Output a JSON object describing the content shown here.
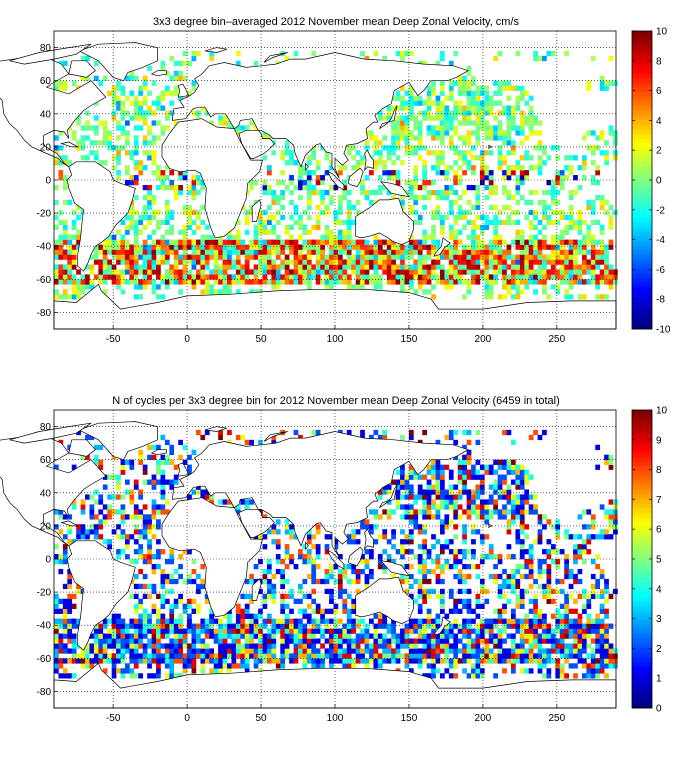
{
  "chart_data": [
    {
      "type": "heatmap",
      "title": "3x3 degree bin–averaged 2012 November mean Deep Zonal Velocity, cm/s",
      "xlabel": "",
      "ylabel": "",
      "xlim": [
        -90,
        290
      ],
      "ylim": [
        -90,
        90
      ],
      "xticks": [
        -50,
        0,
        50,
        100,
        150,
        200,
        250
      ],
      "yticks": [
        -80,
        -60,
        -40,
        -20,
        0,
        20,
        40,
        60,
        80
      ],
      "grid": true,
      "bin_size_deg": 3,
      "colorbar": {
        "min": -10,
        "max": 10,
        "ticks": [
          -10,
          -8,
          -6,
          -4,
          -2,
          0,
          2,
          4,
          6,
          8,
          10
        ],
        "colormap": "jet"
      },
      "seed": 7
    },
    {
      "type": "heatmap",
      "title": "N of cycles per 3x3 degree bin for 2012 November mean Deep Zonal Velocity (6459 in total)",
      "xlabel": "",
      "ylabel": "",
      "xlim": [
        -90,
        290
      ],
      "ylim": [
        -90,
        90
      ],
      "xticks": [
        -50,
        0,
        50,
        100,
        150,
        200,
        250
      ],
      "yticks": [
        -80,
        -60,
        -40,
        -20,
        0,
        20,
        40,
        60,
        80
      ],
      "grid": true,
      "bin_size_deg": 3,
      "total_cycles": 6459,
      "colorbar": {
        "min": 0,
        "max": 10,
        "ticks": [
          0,
          1,
          2,
          3,
          4,
          5,
          6,
          7,
          8,
          9,
          10
        ],
        "colormap": "jet"
      },
      "seed": 13
    }
  ]
}
